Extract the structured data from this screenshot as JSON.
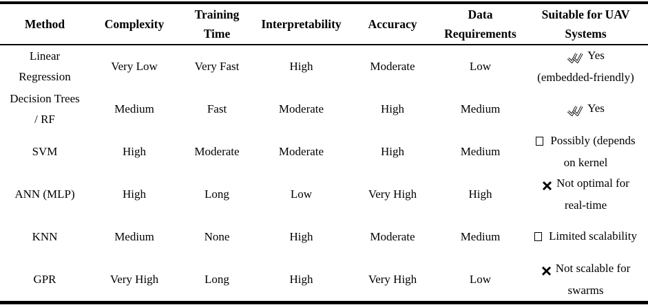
{
  "colors": {
    "text": "#000000",
    "background": "#ffffff",
    "rule": "#000000"
  },
  "table": {
    "columns": [
      {
        "key": "method",
        "label": "Method"
      },
      {
        "key": "complexity",
        "label": "Complexity"
      },
      {
        "key": "training_time",
        "label": "Training Time"
      },
      {
        "key": "interpretability",
        "label": "Interpretability"
      },
      {
        "key": "accuracy",
        "label": "Accuracy"
      },
      {
        "key": "data_requirements",
        "label": "Data Requirements"
      },
      {
        "key": "uav_suitability",
        "label": "Suitable for UAV Systems"
      }
    ],
    "rows": [
      {
        "method_lines": [
          "Linear",
          "Regression"
        ],
        "complexity": "Very Low",
        "training_time": "Very Fast",
        "interpretability": "High",
        "accuracy": "Moderate",
        "data_requirements": "Low",
        "uav": {
          "icon": "double-check-icon",
          "lines": [
            "Yes",
            "(embedded-friendly)"
          ]
        }
      },
      {
        "method_lines": [
          "Decision Trees",
          "/ RF"
        ],
        "complexity": "Medium",
        "training_time": "Fast",
        "interpretability": "Moderate",
        "accuracy": "High",
        "data_requirements": "Medium",
        "uav": {
          "icon": "double-check-icon",
          "lines": [
            "Yes"
          ]
        }
      },
      {
        "method_lines": [
          "SVM"
        ],
        "complexity": "High",
        "training_time": "Moderate",
        "interpretability": "Moderate",
        "accuracy": "High",
        "data_requirements": "Medium",
        "uav": {
          "icon": "missing-glyph-box-icon",
          "lines": [
            "Possibly (depends",
            "on kernel"
          ]
        }
      },
      {
        "method_lines": [
          "ANN (MLP)"
        ],
        "complexity": "High",
        "training_time": "Long",
        "interpretability": "Low",
        "accuracy": "Very High",
        "data_requirements": "High",
        "uav": {
          "icon": "cross-icon",
          "lines": [
            "Not optimal for",
            "real-time"
          ]
        }
      },
      {
        "method_lines": [
          "KNN"
        ],
        "complexity": "Medium",
        "training_time": "None",
        "interpretability": "High",
        "accuracy": "Moderate",
        "data_requirements": "Medium",
        "uav": {
          "icon": "missing-glyph-box-icon",
          "lines": [
            "Limited scalability"
          ]
        }
      },
      {
        "method_lines": [
          "GPR"
        ],
        "complexity": "Very High",
        "training_time": "Long",
        "interpretability": "High",
        "accuracy": "Very High",
        "data_requirements": "Low",
        "uav": {
          "icon": "cross-icon",
          "lines": [
            "Not scalable for",
            "swarms"
          ]
        }
      }
    ]
  }
}
